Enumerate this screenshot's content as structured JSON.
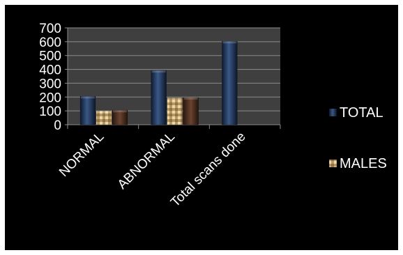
{
  "chart_data": {
    "type": "bar",
    "categories": [
      "NORMAL",
      "ABNORMAL",
      "Total scans done"
    ],
    "series": [
      {
        "name": "TOTAL",
        "values": [
          205,
          392,
          603
        ],
        "color": "#1c2f52"
      },
      {
        "name": "MALES",
        "values": [
          100,
          195,
          null
        ],
        "color": "#cdb27e"
      },
      {
        "name": "",
        "values": [
          105,
          197,
          null
        ],
        "color": "#4a2c1e"
      }
    ],
    "title": "",
    "xlabel": "",
    "ylabel": "",
    "ylim": [
      0,
      700
    ],
    "yticks": [
      0,
      100,
      200,
      300,
      400,
      500,
      600,
      700
    ],
    "grid": true,
    "legend_position": "right",
    "legend_entries": [
      "TOTAL",
      "MALES"
    ],
    "colors": {
      "background": "#000000",
      "plot_area": "#3f3f3f",
      "gridline": "#8c8c8c",
      "text": "#ffffff"
    }
  }
}
